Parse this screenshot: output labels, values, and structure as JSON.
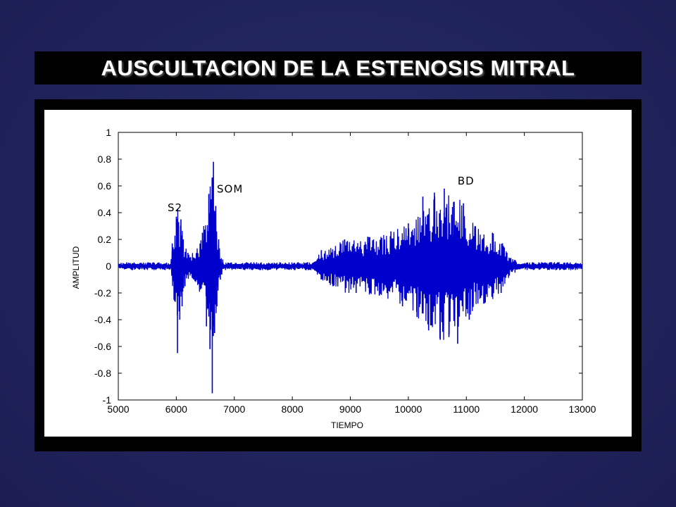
{
  "slide": {
    "title": "AUSCULTACION DE LA ESTENOSIS MITRAL"
  },
  "colors": {
    "background": "#22265f",
    "title_bar": "#000000",
    "signal": "#0000cc"
  },
  "chart_data": {
    "type": "line",
    "title": "AUSCULTACION DE LA ESTENOSIS MITRAL",
    "xlabel": "TIEMPO",
    "ylabel": "AMPLITUD",
    "xlim": [
      5000,
      13000
    ],
    "ylim": [
      -1,
      1
    ],
    "xticks": [
      5000,
      6000,
      7000,
      8000,
      9000,
      10000,
      11000,
      12000,
      13000
    ],
    "yticks": [
      1,
      0.8,
      0.6,
      0.4,
      0.2,
      0,
      -0.2,
      -0.4,
      -0.6,
      -0.8,
      -1
    ],
    "grid": false,
    "annotations": [
      {
        "text": "S2",
        "x": 5850,
        "y": 0.41
      },
      {
        "text": "SOM",
        "x": 6700,
        "y": 0.55
      },
      {
        "text": "BD",
        "x": 10850,
        "y": 0.61
      }
    ],
    "series": [
      {
        "color": "#0000cc",
        "x": [
          5000,
          5900,
          5930,
          5960,
          6000,
          6020,
          6040,
          6060,
          6080,
          6100,
          6120,
          6150,
          6200,
          6300,
          6450,
          6520,
          6560,
          6580,
          6600,
          6620,
          6640,
          6660,
          6680,
          6700,
          6730,
          6760,
          6800,
          6900,
          7500,
          8300,
          8500,
          8700,
          8900,
          9100,
          9300,
          9500,
          9700,
          9900,
          10000,
          10150,
          10250,
          10350,
          10450,
          10550,
          10620,
          10700,
          10780,
          10850,
          10950,
          11050,
          11150,
          11300,
          11450,
          11600,
          11700,
          12000,
          13000
        ],
        "y": [
          0,
          0,
          0.17,
          -0.25,
          0.37,
          -0.65,
          0.33,
          -0.4,
          0.35,
          -0.3,
          0.2,
          -0.15,
          0.1,
          -0.1,
          0.25,
          -0.45,
          0.54,
          -0.62,
          0.5,
          -0.95,
          0.78,
          -0.5,
          0.45,
          -0.3,
          0.2,
          -0.1,
          0.05,
          0,
          0,
          0,
          0.12,
          -0.15,
          0.2,
          -0.2,
          0.22,
          -0.22,
          0.26,
          -0.3,
          0.32,
          -0.38,
          0.52,
          -0.48,
          0.55,
          -0.55,
          0.58,
          -0.53,
          0.48,
          -0.58,
          0.47,
          -0.4,
          0.3,
          -0.28,
          0.25,
          -0.2,
          0.1,
          0,
          0
        ]
      }
    ]
  }
}
